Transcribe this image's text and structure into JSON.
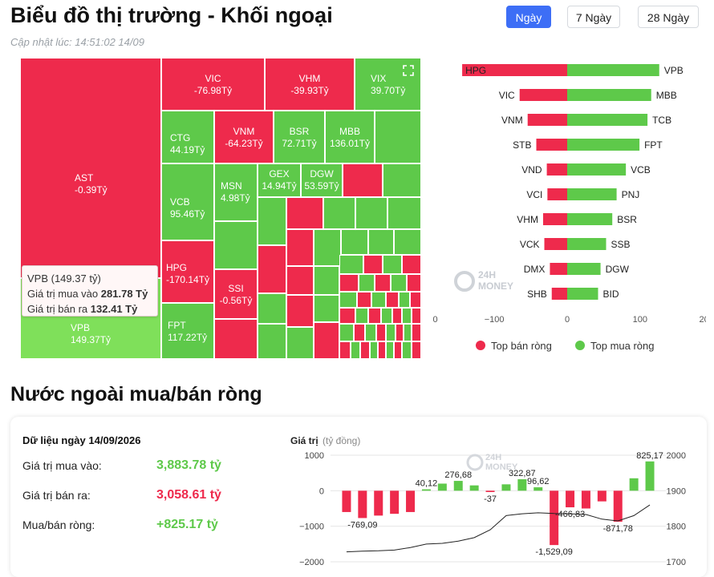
{
  "header": {
    "title": "Biểu đồ thị trường - Khối ngoại",
    "updated": "Cập nhật lúc: 14:51:02 14/09",
    "periods": [
      "Ngày",
      "7 Ngày",
      "28 Ngày"
    ],
    "active_period": "Ngày"
  },
  "colors": {
    "sell": "#ee2a4c",
    "buy": "#5ec94a",
    "active": "#3d6ef6",
    "highlight": "#7fe05a"
  },
  "treemap": {
    "expand_icon": "expand-icon",
    "tiles": [
      {
        "code": "AST",
        "value": "-0.39Tỷ"
      },
      {
        "code": "VPB",
        "value": "149.37Tỷ"
      },
      {
        "code": "VIC",
        "value": "-76.98Tỷ"
      },
      {
        "code": "VHM",
        "value": "-39.93Tỷ"
      },
      {
        "code": "VIX",
        "value": "39.70Tỷ"
      },
      {
        "code": "CTG",
        "value": "44.19Tỷ"
      },
      {
        "code": "VNM",
        "value": "-64.23Tỷ"
      },
      {
        "code": "BSR",
        "value": "72.71Tỷ"
      },
      {
        "code": "MBB",
        "value": "136.01Tỷ"
      },
      {
        "code": "VCB",
        "value": "95.46Tỷ"
      },
      {
        "code": "MSN",
        "value": "4.98Tỷ"
      },
      {
        "code": "GEX",
        "value": "14.94Tỷ"
      },
      {
        "code": "DGW",
        "value": "53.59Tỷ"
      },
      {
        "code": "HPG",
        "value": "-170.14Tỷ"
      },
      {
        "code": "SSI",
        "value": "-0.56Tỷ"
      },
      {
        "code": "FPT",
        "value": "117.22Tỷ"
      }
    ],
    "tooltip": {
      "title": "VPB (149.37 tỷ)",
      "buy_label": "Giá trị mua vào",
      "buy_value": "281.78 Tỷ",
      "sell_label": "Giá trị bán ra",
      "sell_value": "132.41 Tỷ"
    }
  },
  "watermark": {
    "line1": "24H",
    "line2": "MONEY"
  },
  "chart_data": [
    {
      "type": "bar",
      "orientation": "horizontal",
      "sell_codes": [
        "HPG",
        "VIC",
        "VNM",
        "STB",
        "VND",
        "VCI",
        "VHM",
        "VCK",
        "DMX",
        "SHB"
      ],
      "sell_values": [
        -170,
        -77,
        -64,
        -50,
        -33,
        -32,
        -39,
        -37,
        -28,
        -25
      ],
      "buy_codes": [
        "VPB",
        "MBB",
        "TCB",
        "FPT",
        "VCB",
        "PNJ",
        "BSR",
        "SSB",
        "DGW",
        "BID"
      ],
      "buy_values": [
        149,
        136,
        130,
        117,
        95,
        80,
        73,
        63,
        54,
        50
      ],
      "x_ticks": [
        "−200",
        "−100",
        "0",
        "100",
        "200"
      ],
      "xlim": [
        -200,
        200
      ],
      "legend": [
        "Top bán ròng",
        "Top mua ròng"
      ],
      "legend_position": "bottom"
    },
    {
      "type": "bar",
      "ylabel": "Giá trị",
      "yunit": "(tỷ đồng)",
      "ylim": [
        -2000,
        1000
      ],
      "y_ticks": [
        "1000",
        "0",
        "−1000",
        "−2000"
      ],
      "y2lim": [
        1700,
        2000
      ],
      "y2_ticks": [
        "2000",
        "1900",
        "1800",
        "1700"
      ],
      "values": [
        -600,
        -769.09,
        -700,
        -650,
        -600,
        40.12,
        200,
        276.68,
        150,
        -37,
        180,
        322.87,
        96.62,
        -1529.09,
        -466.83,
        -500,
        -300,
        -871.78,
        350,
        825.17
      ],
      "labels": [
        "",
        "-769,09",
        "",
        "",
        "",
        "40,12",
        "",
        "276,68",
        "",
        "-37",
        "",
        "322,87",
        "96,62",
        "-1,529,09",
        "-466,83",
        "",
        "",
        "-871,78",
        "",
        "825,17"
      ],
      "line_values": [
        1728,
        1730,
        1731,
        1733,
        1740,
        1750,
        1752,
        1758,
        1768,
        1790,
        1830,
        1835,
        1838,
        1836,
        1835,
        1833,
        1820,
        1815,
        1830,
        1860
      ]
    }
  ],
  "summary": {
    "date_line": "Dữ liệu ngày 14/09/2026",
    "rows": [
      {
        "label": "Giá trị mua vào:",
        "value": "3,883.78 tỷ",
        "color": "#5ec94a"
      },
      {
        "label": "Giá trị bán ra:",
        "value": "3,058.61 tỷ",
        "color": "#ee2a4c"
      },
      {
        "label": "Mua/bán ròng:",
        "value": "+825.17 tỷ",
        "color": "#5ec94a"
      }
    ]
  },
  "section2_title": "Nước ngoài mua/bán ròng"
}
